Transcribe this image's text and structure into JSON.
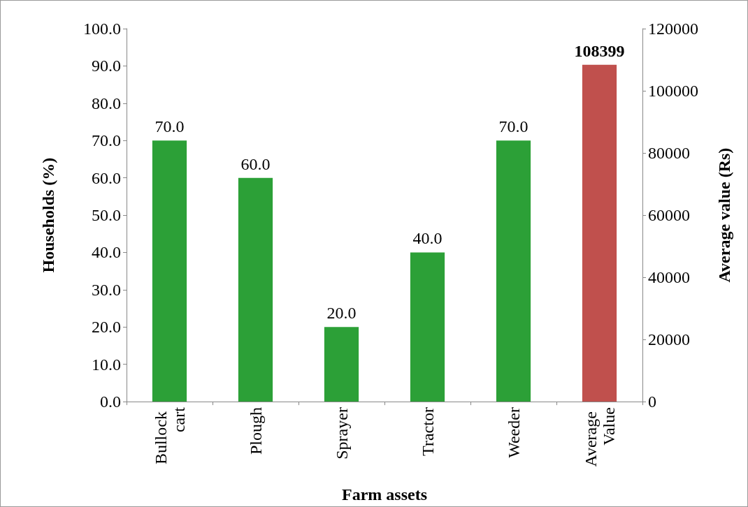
{
  "chart_data": {
    "type": "bar",
    "xlabel": "Farm assets",
    "ylabel": "Households (%)",
    "y2label": "Average value (Rs)",
    "categories": [
      "Bullock cart",
      "Plough",
      "Sprayer",
      "Tractor",
      "Weeder",
      "Average Value"
    ],
    "series": [
      {
        "color": "#2ca037",
        "values": [
          70,
          60,
          20,
          40,
          70,
          null
        ],
        "value_labels": [
          "70.0",
          "60.0",
          "20.0",
          "40.0",
          "70.0",
          null
        ]
      },
      {
        "color": "#c0504d",
        "axis": "y2",
        "values": [
          null,
          null,
          null,
          null,
          null,
          108399
        ],
        "value_labels": [
          null,
          null,
          null,
          null,
          null,
          "108399"
        ]
      }
    ],
    "ylim": [
      0,
      100
    ],
    "yticks": [
      {
        "value": 0,
        "label": "0.0"
      },
      {
        "value": 10,
        "label": "10.0"
      },
      {
        "value": 20,
        "label": "20.0"
      },
      {
        "value": 30,
        "label": "30.0"
      },
      {
        "value": 40,
        "label": "40.0"
      },
      {
        "value": 50,
        "label": "50.0"
      },
      {
        "value": 60,
        "label": "60.0"
      },
      {
        "value": 70,
        "label": "70.0"
      },
      {
        "value": 80,
        "label": "80.0"
      },
      {
        "value": 90,
        "label": "90.0"
      },
      {
        "value": 100,
        "label": "100.0"
      }
    ],
    "y2lim": [
      0,
      120000
    ],
    "y2ticks": [
      0,
      20000,
      40000,
      60000,
      80000,
      100000,
      120000
    ],
    "grid": false
  }
}
